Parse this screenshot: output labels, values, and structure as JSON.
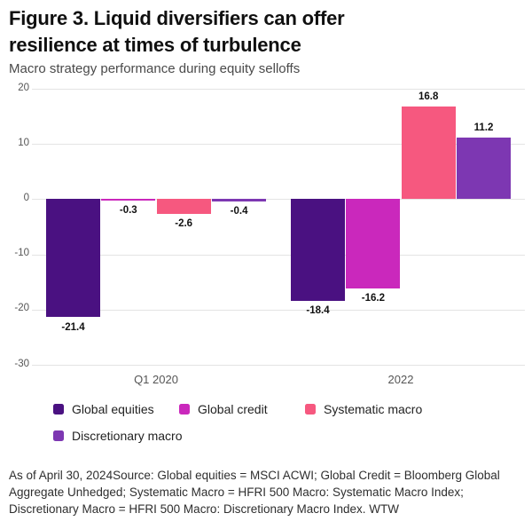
{
  "header": {
    "title_lines": [
      "Figure 3. Liquid diversifiers can offer",
      "resilience at times of turbulence"
    ],
    "subtitle": "Macro strategy performance during equity selloffs"
  },
  "chart_data": {
    "type": "bar",
    "categories": [
      "Q1 2020",
      "2022"
    ],
    "series": [
      {
        "name": "Global equities",
        "color": "#4A1181",
        "values": [
          -21.4,
          -18.4
        ]
      },
      {
        "name": "Global credit",
        "color": "#CA28BC",
        "values": [
          -0.3,
          -16.2
        ]
      },
      {
        "name": "Systematic macro",
        "color": "#F6587F",
        "values": [
          -2.6,
          16.8
        ]
      },
      {
        "name": "Discretionary macro",
        "color": "#7D37B2",
        "values": [
          -0.4,
          11.2
        ]
      }
    ],
    "yticks": [
      20,
      10,
      0,
      -10,
      -20,
      -30
    ],
    "ylim": [
      -30,
      20
    ],
    "grid": true,
    "gridline_color": "#e4e4e4",
    "legend_position": "bottom",
    "value_labels": true
  },
  "footer": {
    "text": "As of April 30, 2024Source: Global equities = MSCI ACWI; Global Credit = Bloomberg Global Aggregate Unhedged; Systematic Macro = HFRI 500 Macro: Systematic Macro Index; Discretionary Macro = HFRI 500 Macro: Discretionary Macro Index. WTW"
  }
}
